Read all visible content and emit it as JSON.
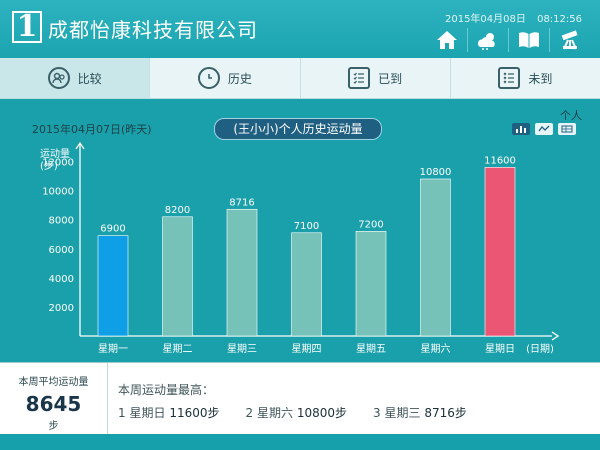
{
  "header": {
    "logo_mark": "1",
    "company": "成都怡康科技有限公司",
    "date": "2015年04月08日",
    "time": "08:12:56",
    "icons": [
      "home-icon",
      "weather-icon",
      "book-icon",
      "telescope-icon"
    ]
  },
  "tabs": [
    {
      "label": "比较",
      "icon": "users-icon"
    },
    {
      "label": "历史",
      "icon": "history-icon"
    },
    {
      "label": "已到",
      "icon": "checklist-icon"
    },
    {
      "label": "未到",
      "icon": "cross-list-icon"
    }
  ],
  "main": {
    "date_label": "2015年04月07日(昨天)",
    "title": "(王小小)个人历史运动量",
    "person_label": "个人",
    "view_icons": [
      "bar-view-icon",
      "line-view-icon",
      "table-view-icon"
    ]
  },
  "chart_data": {
    "type": "bar",
    "ylabel": "运动量\n(步)",
    "xlabel": "(日期)",
    "ylim": [
      0,
      13000
    ],
    "yticks": [
      2000,
      4000,
      6000,
      8000,
      10000,
      12000
    ],
    "categories": [
      "星期一",
      "星期二",
      "星期三",
      "星期四",
      "星期五",
      "星期六",
      "星期日"
    ],
    "values": [
      6900,
      8200,
      8716,
      7100,
      7200,
      10800,
      11600
    ],
    "colors": [
      "#0f9fe6",
      "#77c2b8",
      "#77c2b8",
      "#77c2b8",
      "#77c2b8",
      "#77c2b8",
      "#ec5675"
    ],
    "grid": false
  },
  "summary": {
    "avg_title": "本周平均运动量",
    "avg_value": "8645",
    "avg_unit": "步",
    "best_title": "本周运动量最高：",
    "best": [
      {
        "rank": "1",
        "day": "星期日",
        "value": "11600步"
      },
      {
        "rank": "2",
        "day": "星期六",
        "value": "10800步"
      },
      {
        "rank": "3",
        "day": "星期三",
        "value": "8716步"
      }
    ]
  }
}
